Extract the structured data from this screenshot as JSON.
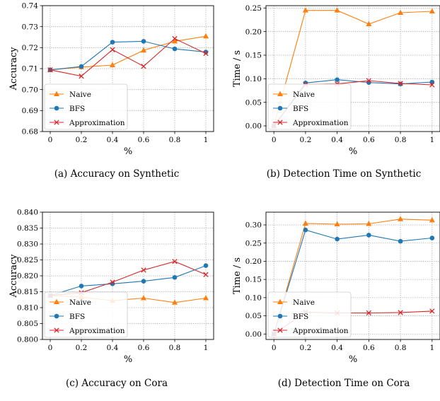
{
  "colors": {
    "naive": "#ff7f0e",
    "bfs": "#1f77b4",
    "approx": "#d62728"
  },
  "legend": [
    "Naive",
    "BFS",
    "Approximation"
  ],
  "chart_data": [
    {
      "type": "line",
      "caption": "(a)  Accuracy on Synthetic",
      "xlabel": "%",
      "ylabel": "Accuracy",
      "x": [
        0,
        0.2,
        0.4,
        0.6,
        0.8,
        1
      ],
      "xticks": [
        "0",
        "0.2",
        "0.4",
        "0.6",
        "0.8",
        "1"
      ],
      "xlim": [
        -0.05,
        1.05
      ],
      "ylim": [
        0.68,
        0.74
      ],
      "yticks": [
        "0.68",
        "0.69",
        "0.70",
        "0.71",
        "0.72",
        "0.73",
        "0.74"
      ],
      "legend_position": "lower-left",
      "grid": true,
      "series": [
        {
          "name": "Naive",
          "marker": "triangle",
          "values": [
            0.7094,
            0.7107,
            0.7117,
            0.7187,
            0.723,
            0.7254
          ]
        },
        {
          "name": "BFS",
          "marker": "circle",
          "values": [
            0.7094,
            0.711,
            0.7226,
            0.723,
            0.7194,
            0.7179
          ]
        },
        {
          "name": "Approximation",
          "marker": "x",
          "values": [
            0.7094,
            0.7064,
            0.719,
            0.7111,
            0.7243,
            0.7172
          ]
        }
      ]
    },
    {
      "type": "line",
      "caption": "(b)  Detection Time on Synthetic",
      "xlabel": "%",
      "ylabel": "Time / s",
      "x": [
        0,
        0.2,
        0.4,
        0.6,
        0.8,
        1
      ],
      "xticks": [
        "0",
        "0.2",
        "0.4",
        "0.6",
        "0.8",
        "1"
      ],
      "xlim": [
        -0.05,
        1.05
      ],
      "ylim": [
        -0.012,
        0.255
      ],
      "yticks": [
        "0.00",
        "0.05",
        "0.10",
        "0.15",
        "0.20",
        "0.25"
      ],
      "legend_position": "lower-left",
      "grid": true,
      "series": [
        {
          "name": "Naive",
          "marker": "triangle",
          "values": [
            0.0,
            0.245,
            0.245,
            0.216,
            0.24,
            0.243
          ]
        },
        {
          "name": "BFS",
          "marker": "circle",
          "values": [
            0.0,
            0.091,
            0.098,
            0.092,
            0.089,
            0.093
          ]
        },
        {
          "name": "Approximation",
          "marker": "x",
          "values": [
            0.0,
            0.088,
            0.089,
            0.096,
            0.09,
            0.087
          ]
        }
      ]
    },
    {
      "type": "line",
      "caption": "(c)  Accuracy on Cora",
      "xlabel": "%",
      "ylabel": "Accuracy",
      "x": [
        0,
        0.2,
        0.4,
        0.6,
        0.8,
        1
      ],
      "xticks": [
        "0",
        "0.2",
        "0.4",
        "0.6",
        "0.8",
        "1"
      ],
      "xlim": [
        -0.05,
        1.05
      ],
      "ylim": [
        0.8,
        0.84
      ],
      "yticks": [
        "0.800",
        "0.805",
        "0.810",
        "0.815",
        "0.820",
        "0.825",
        "0.830",
        "0.835",
        "0.840"
      ],
      "legend_position": "lower-left",
      "grid": true,
      "series": [
        {
          "name": "Naive",
          "marker": "triangle",
          "values": [
            0.8138,
            0.8133,
            0.8122,
            0.813,
            0.8116,
            0.813
          ]
        },
        {
          "name": "BFS",
          "marker": "circle",
          "values": [
            0.8138,
            0.8168,
            0.8175,
            0.8183,
            0.8195,
            0.8232
          ]
        },
        {
          "name": "Approximation",
          "marker": "x",
          "values": [
            0.8138,
            0.8147,
            0.818,
            0.8218,
            0.8245,
            0.8204
          ]
        }
      ]
    },
    {
      "type": "line",
      "caption": "(d)  Detection Time on Cora",
      "xlabel": "%",
      "ylabel": "Time / s",
      "x": [
        0,
        0.2,
        0.4,
        0.6,
        0.8,
        1
      ],
      "xticks": [
        "0",
        "0.2",
        "0.4",
        "0.6",
        "0.8",
        "1"
      ],
      "xlim": [
        -0.05,
        1.05
      ],
      "ylim": [
        -0.015,
        0.335
      ],
      "yticks": [
        "0.00",
        "0.05",
        "0.10",
        "0.15",
        "0.20",
        "0.25",
        "0.30"
      ],
      "legend_position": "lower-left",
      "grid": true,
      "series": [
        {
          "name": "Naive",
          "marker": "triangle",
          "values": [
            0.0,
            0.304,
            0.302,
            0.303,
            0.316,
            0.313
          ]
        },
        {
          "name": "BFS",
          "marker": "circle",
          "values": [
            0.0,
            0.286,
            0.261,
            0.272,
            0.255,
            0.264
          ]
        },
        {
          "name": "Approximation",
          "marker": "x",
          "values": [
            0.0,
            0.06,
            0.058,
            0.058,
            0.059,
            0.063
          ]
        }
      ]
    }
  ]
}
